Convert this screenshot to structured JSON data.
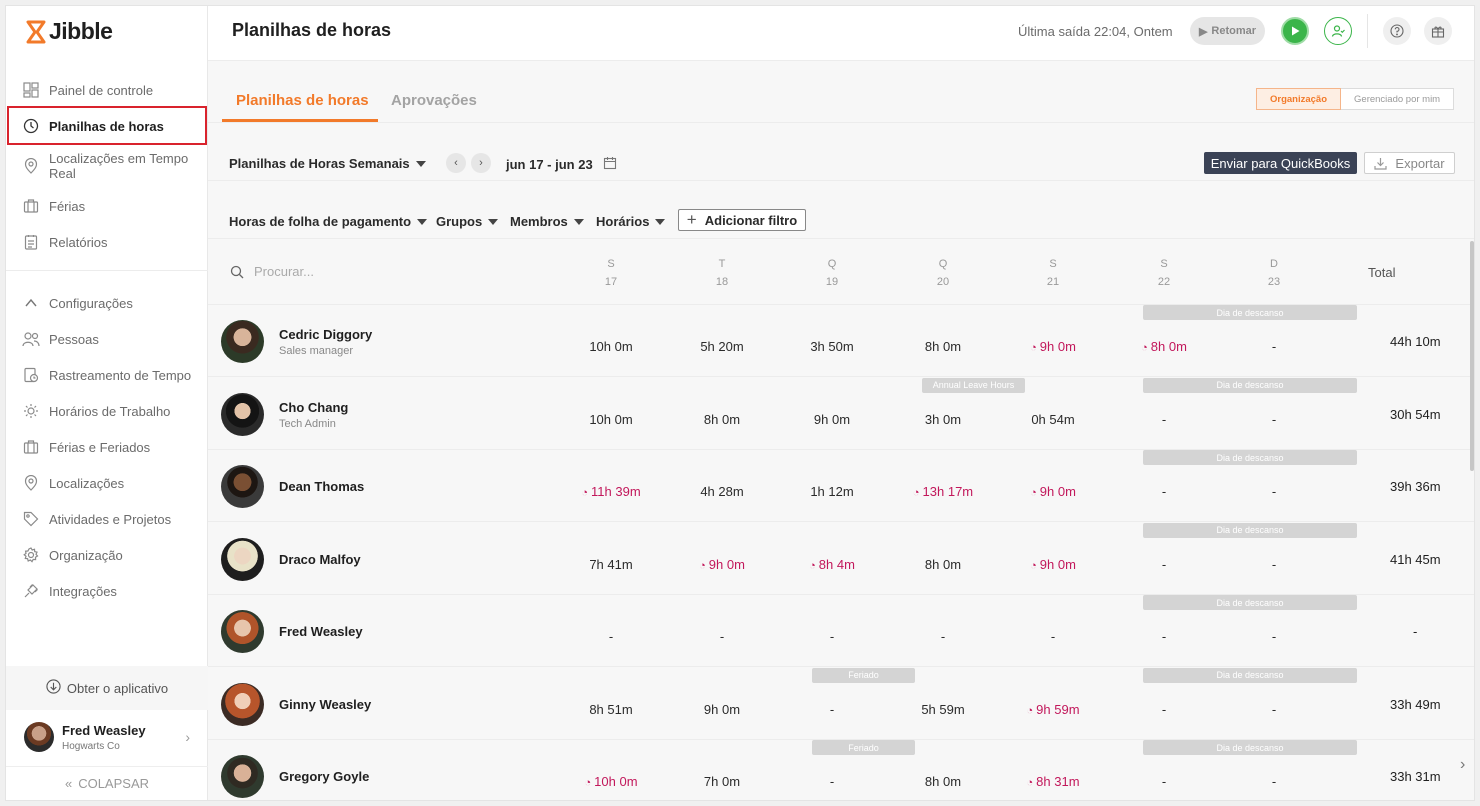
{
  "app": {
    "name": "Jibble"
  },
  "sidebar": {
    "items_top": [
      {
        "label": "Painel de controle",
        "icon": "dashboard-icon"
      },
      {
        "label": "Planilhas de horas",
        "icon": "clock-icon",
        "active": true
      },
      {
        "label": "Localizações em Tempo Real",
        "icon": "location-pin-icon"
      },
      {
        "label": "Férias",
        "icon": "suitcase-icon"
      },
      {
        "label": "Relatórios",
        "icon": "report-icon"
      }
    ],
    "settings_label": "Configurações",
    "items_settings": [
      {
        "label": "Pessoas",
        "icon": "people-icon"
      },
      {
        "label": "Rastreamento de Tempo",
        "icon": "time-tracking-icon"
      },
      {
        "label": "Horários de Trabalho",
        "icon": "sun-icon"
      },
      {
        "label": "Férias e Feriados",
        "icon": "suitcase-icon"
      },
      {
        "label": "Localizações",
        "icon": "location-pin-icon"
      },
      {
        "label": "Atividades e Projetos",
        "icon": "tag-icon"
      },
      {
        "label": "Organização",
        "icon": "gear-icon"
      },
      {
        "label": "Integrações",
        "icon": "plug-icon"
      }
    ],
    "get_app": "Obter o aplicativo",
    "user": {
      "name": "Fred Weasley",
      "org": "Hogwarts Co"
    },
    "collapse": "COLAPSAR"
  },
  "topbar": {
    "title": "Planilhas de horas",
    "last_exit": "Última saída 22:04, Ontem",
    "resume": "Retomar"
  },
  "tabs": {
    "timesheets": "Planilhas de horas",
    "approvals": "Aprovações"
  },
  "scope": {
    "org": "Organização",
    "managed": "Gerenciado por mim"
  },
  "toolbar": {
    "view": "Planilhas de Horas Semanais",
    "date_range": "jun 17 - jun 23",
    "quickbooks": "Enviar para QuickBooks",
    "export": "Exportar"
  },
  "filters": {
    "payroll": "Horas de folha de pagamento",
    "groups": "Grupos",
    "members": "Membros",
    "schedules": "Horários",
    "add": "Adicionar filtro"
  },
  "table": {
    "search_placeholder": "Procurar...",
    "days": [
      {
        "letter": "S",
        "num": "17"
      },
      {
        "letter": "T",
        "num": "18"
      },
      {
        "letter": "Q",
        "num": "19"
      },
      {
        "letter": "Q",
        "num": "20"
      },
      {
        "letter": "S",
        "num": "21"
      },
      {
        "letter": "S",
        "num": "22"
      },
      {
        "letter": "D",
        "num": "23"
      }
    ],
    "total_label": "Total",
    "rows": [
      {
        "name": "Cedric Diggory",
        "role": "Sales manager",
        "total": "44h 10m",
        "cells": [
          "10h 0m",
          "5h 20m",
          "3h 50m",
          "8h 0m",
          "9h 0m",
          "8h 0m",
          "-"
        ],
        "ot": [
          false,
          false,
          false,
          false,
          true,
          true,
          false
        ],
        "tags": [
          {
            "text": "Dia de descanso",
            "span": "weekend"
          }
        ]
      },
      {
        "name": "Cho Chang",
        "role": "Tech Admin",
        "total": "30h 54m",
        "cells": [
          "10h 0m",
          "8h 0m",
          "9h 0m",
          "3h 0m",
          "0h 54m",
          "-",
          "-"
        ],
        "ot": [
          false,
          false,
          false,
          false,
          false,
          false,
          false
        ],
        "tags": [
          {
            "text": "Annual Leave Hours",
            "span": "d4"
          },
          {
            "text": "Dia de descanso",
            "span": "weekend"
          }
        ]
      },
      {
        "name": "Dean Thomas",
        "role": "",
        "total": "39h 36m",
        "cells": [
          "11h 39m",
          "4h 28m",
          "1h 12m",
          "13h 17m",
          "9h 0m",
          "-",
          "-"
        ],
        "ot": [
          true,
          false,
          false,
          true,
          true,
          false,
          false
        ],
        "tags": [
          {
            "text": "Dia de descanso",
            "span": "weekend"
          }
        ]
      },
      {
        "name": "Draco Malfoy",
        "role": "",
        "total": "41h 45m",
        "cells": [
          "7h 41m",
          "9h 0m",
          "8h 4m",
          "8h 0m",
          "9h 0m",
          "-",
          "-"
        ],
        "ot": [
          false,
          true,
          true,
          false,
          true,
          false,
          false
        ],
        "tags": [
          {
            "text": "Dia de descanso",
            "span": "weekend"
          }
        ]
      },
      {
        "name": "Fred Weasley",
        "role": "",
        "total": "-",
        "cells": [
          "-",
          "-",
          "-",
          "-",
          "-",
          "-",
          "-"
        ],
        "ot": [
          false,
          false,
          false,
          false,
          false,
          false,
          false
        ],
        "tags": [
          {
            "text": "Dia de descanso",
            "span": "weekend"
          }
        ]
      },
      {
        "name": "Ginny Weasley",
        "role": "",
        "total": "33h 49m",
        "cells": [
          "8h 51m",
          "9h 0m",
          "-",
          "5h 59m",
          "9h 59m",
          "-",
          "-"
        ],
        "ot": [
          false,
          false,
          false,
          false,
          true,
          false,
          false
        ],
        "tags": [
          {
            "text": "Feriado",
            "span": "d3"
          },
          {
            "text": "Dia de descanso",
            "span": "weekend"
          }
        ]
      },
      {
        "name": "Gregory Goyle",
        "role": "",
        "total": "33h 31m",
        "cells": [
          "10h 0m",
          "7h 0m",
          "-",
          "8h 0m",
          "8h 31m",
          "-",
          "-"
        ],
        "ot": [
          true,
          false,
          false,
          false,
          true,
          false,
          false
        ],
        "tags": [
          {
            "text": "Feriado",
            "span": "d3"
          },
          {
            "text": "Dia de descanso",
            "span": "weekend"
          }
        ]
      }
    ]
  },
  "colors": {
    "accent": "#f27a2a",
    "overtime": "#c2185b",
    "play": "#3bb54a",
    "qb_button": "#3b4356",
    "active_outline": "#d9232d"
  }
}
